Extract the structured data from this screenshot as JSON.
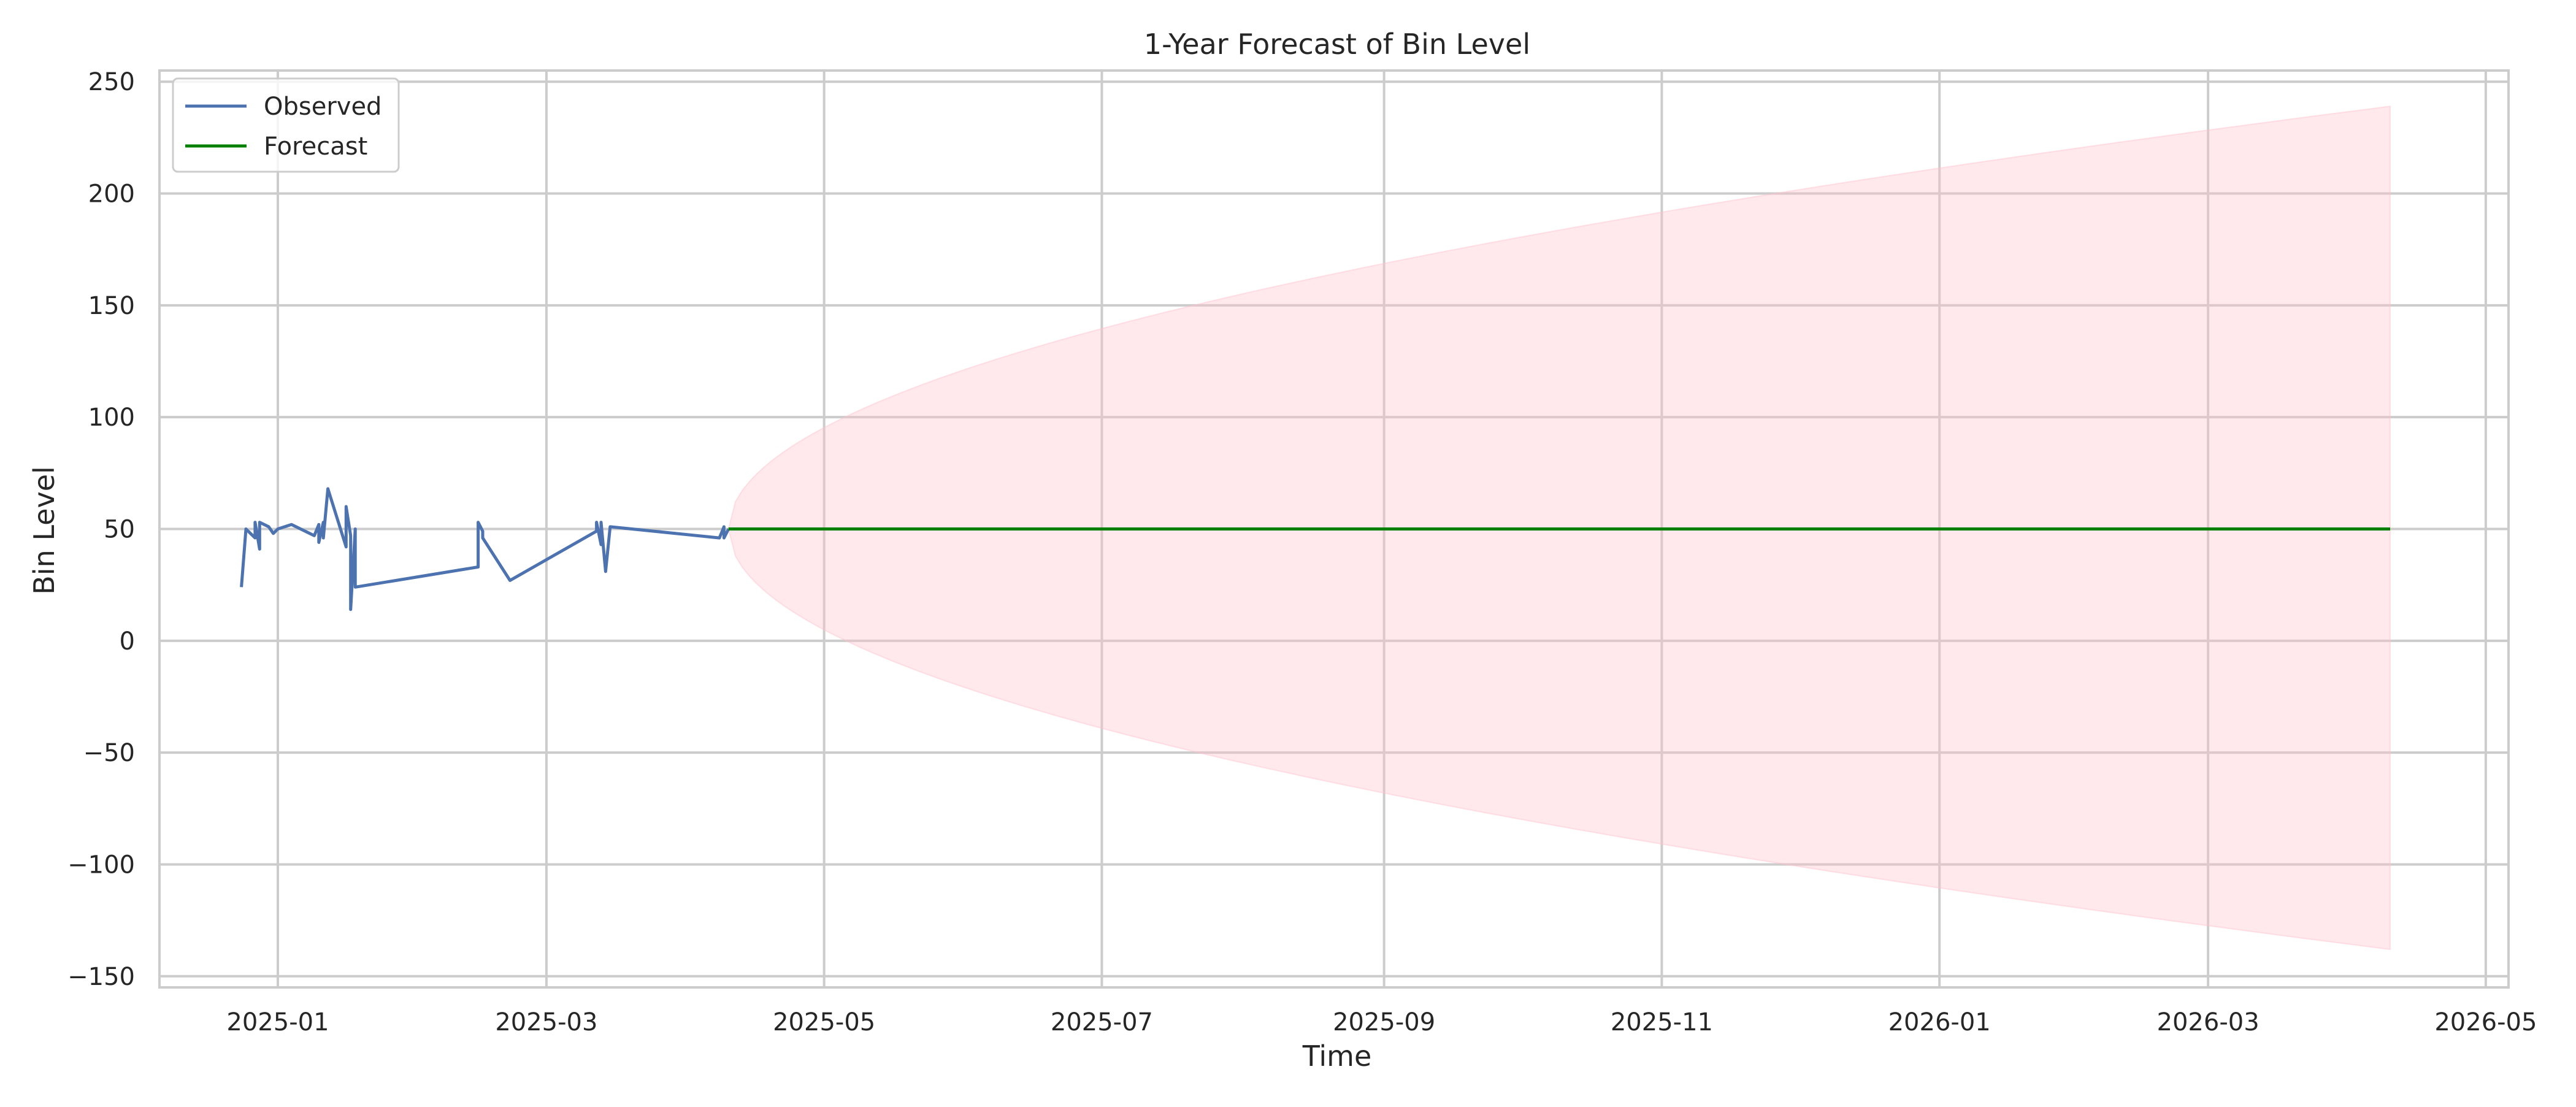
{
  "chart_data": {
    "type": "line",
    "title": "1-Year Forecast of Bin Level",
    "xlabel": "Time",
    "ylabel": "Bin Level",
    "xlim": [
      "2024-12-06",
      "2026-05-06"
    ],
    "ylim": [
      -155,
      255
    ],
    "grid": true,
    "legend_position": "upper-left",
    "x_ticks": [
      "2025-01-01",
      "2025-03-01",
      "2025-05-01",
      "2025-07-01",
      "2025-09-01",
      "2025-11-01",
      "2026-01-01",
      "2026-03-01",
      "2026-05-01"
    ],
    "x_tick_labels": [
      "2025-01",
      "2025-03",
      "2025-05",
      "2025-07",
      "2025-09",
      "2025-11",
      "2026-01",
      "2026-03",
      "2026-05"
    ],
    "y_ticks": [
      -150,
      -100,
      -50,
      0,
      50,
      100,
      150,
      200,
      250
    ],
    "y_tick_labels": [
      "−150",
      "−100",
      "−50",
      "0",
      "50",
      "100",
      "150",
      "200",
      "250"
    ],
    "colors": {
      "observed": "#4c72b0",
      "forecast": "#008000",
      "band_fill": "#ffc0cb",
      "grid": "#cccccc",
      "spine": "#cccccc"
    },
    "series": [
      {
        "name": "Observed",
        "points": [
          [
            "2024-12-24",
            24
          ],
          [
            "2024-12-25",
            50
          ],
          [
            "2024-12-26",
            48
          ],
          [
            "2024-12-27",
            46
          ],
          [
            "2024-12-27",
            53
          ],
          [
            "2024-12-28",
            41
          ],
          [
            "2024-12-28",
            53
          ],
          [
            "2024-12-30",
            51
          ],
          [
            "2024-12-31",
            48
          ],
          [
            "2025-01-01",
            50
          ],
          [
            "2025-01-04",
            52
          ],
          [
            "2025-01-08",
            48
          ],
          [
            "2025-01-09",
            47
          ],
          [
            "2025-01-10",
            52
          ],
          [
            "2025-01-10",
            44
          ],
          [
            "2025-01-11",
            53
          ],
          [
            "2025-01-11",
            46
          ],
          [
            "2025-01-12",
            68
          ],
          [
            "2025-01-16",
            42
          ],
          [
            "2025-01-16",
            60
          ],
          [
            "2025-01-17",
            47
          ],
          [
            "2025-01-17",
            14
          ],
          [
            "2025-01-18",
            50
          ],
          [
            "2025-01-18",
            24
          ],
          [
            "2025-02-14",
            33
          ],
          [
            "2025-02-14",
            53
          ],
          [
            "2025-02-15",
            49
          ],
          [
            "2025-02-15",
            46
          ],
          [
            "2025-02-21",
            27
          ],
          [
            "2025-03-12",
            49
          ],
          [
            "2025-03-12",
            53
          ],
          [
            "2025-03-13",
            43
          ],
          [
            "2025-03-13",
            53
          ],
          [
            "2025-03-14",
            31
          ],
          [
            "2025-03-15",
            51
          ],
          [
            "2025-04-08",
            46
          ],
          [
            "2025-04-09",
            51
          ],
          [
            "2025-04-09",
            46
          ],
          [
            "2025-04-10",
            50
          ]
        ]
      },
      {
        "name": "Forecast",
        "points": [
          [
            "2025-04-10",
            50
          ],
          [
            "2026-04-10",
            50
          ]
        ]
      }
    ],
    "confidence_band": {
      "start": "2025-04-10",
      "end": "2026-04-10",
      "center": 50,
      "end_upper": 239,
      "end_lower": -138
    }
  }
}
